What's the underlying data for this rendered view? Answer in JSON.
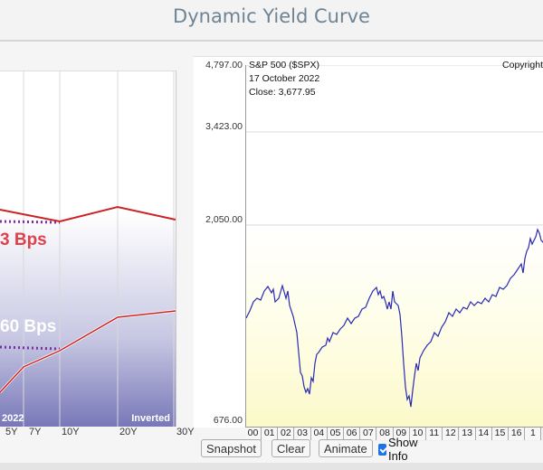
{
  "page": {
    "title": "Dynamic Yield Curve"
  },
  "yield_curve": {
    "top_spread_label": "3 Bps",
    "bottom_spread_label": "60 Bps",
    "date_label": "2022",
    "state_label": "Inverted",
    "maturity_ticks": [
      "5Y",
      "7Y",
      "10Y",
      "20Y",
      "30Y"
    ],
    "colors": {
      "curve": "#cc2222",
      "dotted": "#7b2f9e"
    }
  },
  "sp500": {
    "title": "S&P 500 ($SPX)",
    "copyright": "Copyright",
    "date": "17  October 2022",
    "close": "Close: 3,677.95",
    "y_ticks": [
      "4,797.00",
      "3,423.00",
      "2,050.00",
      "676.00"
    ],
    "x_ticks": [
      "00",
      "01",
      "02",
      "03",
      "04",
      "05",
      "06",
      "07",
      "08",
      "09",
      "10",
      "11",
      "12",
      "13",
      "14",
      "15",
      "16",
      "1"
    ],
    "colors": {
      "line": "#2a2ab8"
    }
  },
  "controls": {
    "snapshot": "Snapshot",
    "clear": "Clear",
    "animate": "Animate",
    "show_info": "Show Info",
    "show_info_checked": true
  }
}
